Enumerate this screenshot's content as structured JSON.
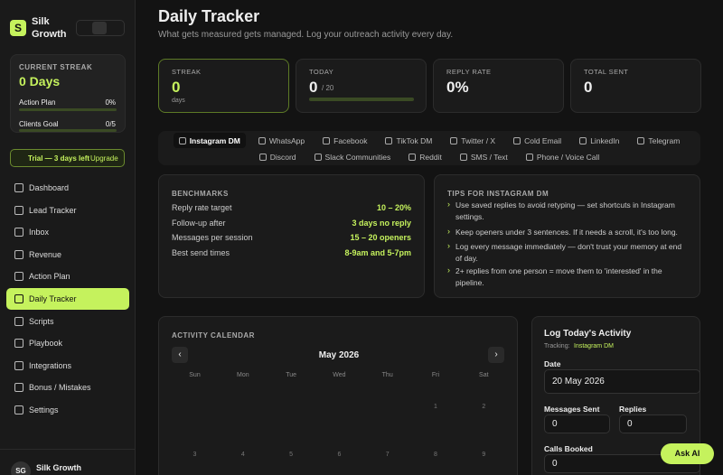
{
  "sidebar": {
    "logo": "S",
    "brand": "Silk Growth",
    "streak": {
      "label": "CURRENT STREAK",
      "value": "0 Days",
      "rows": [
        {
          "label": "Action Plan",
          "value": "0%"
        },
        {
          "label": "Clients Goal",
          "value": "0/5"
        }
      ]
    },
    "trial": {
      "text": "Trial — 3 days left",
      "action": "Upgrade"
    },
    "nav": [
      "Dashboard",
      "Lead Tracker",
      "Inbox",
      "Revenue",
      "Action Plan",
      "Daily Tracker",
      "Scripts",
      "Playbook",
      "Integrations",
      "Bonus / Mistakes",
      "Settings"
    ],
    "user": {
      "initials": "SG",
      "name": "Silk Growth"
    }
  },
  "header": {
    "title": "Daily Tracker",
    "subtitle": "What gets measured gets managed. Log your outreach activity every day."
  },
  "stats": [
    {
      "label": "STREAK",
      "value": "0",
      "unit": "days"
    },
    {
      "label": "TODAY",
      "value": "0",
      "unit": "/ 20"
    },
    {
      "label": "REPLY RATE",
      "value": "0%"
    },
    {
      "label": "TOTAL SENT",
      "value": "0"
    }
  ],
  "tabs": [
    "Instagram DM",
    "WhatsApp",
    "Facebook",
    "TikTok DM",
    "Twitter / X",
    "Cold Email",
    "LinkedIn",
    "Telegram",
    "Discord",
    "Slack Communities",
    "Reddit",
    "SMS / Text",
    "Phone / Voice Call"
  ],
  "benchmarks": {
    "title": "BENCHMARKS",
    "rows": [
      {
        "label": "Reply rate target",
        "value": "10 – 20%"
      },
      {
        "label": "Follow-up after",
        "value": "3 days no reply"
      },
      {
        "label": "Messages per session",
        "value": "15 – 20 openers"
      },
      {
        "label": "Best send times",
        "value": "8-9am and 5-7pm"
      }
    ]
  },
  "tips": {
    "title": "TIPS FOR INSTAGRAM DM",
    "items": [
      "Use saved replies to avoid retyping — set shortcuts in Instagram settings.",
      "Keep openers under 3 sentences. If it needs a scroll, it's too long.",
      "Log every message immediately — don't trust your memory at end of day.",
      "2+ replies from one person = move them to 'interested' in the pipeline."
    ]
  },
  "calendar": {
    "title": "ACTIVITY CALENDAR",
    "month": "May 2026",
    "weekdays": [
      "Sun",
      "Mon",
      "Tue",
      "Wed",
      "Thu",
      "Fri",
      "Sat"
    ],
    "days": [
      1,
      2,
      3,
      4,
      5,
      6,
      7,
      8,
      9
    ]
  },
  "log": {
    "title": "Log Today's Activity",
    "tracking_label": "Tracking:",
    "tracking_value": "Instagram DM",
    "fields": [
      {
        "label": "Date",
        "value": "20 May 2026"
      },
      {
        "label": "Messages Sent",
        "value": "0"
      },
      {
        "label": "Replies",
        "value": "0"
      },
      {
        "label": "Calls Booked",
        "value": "0"
      }
    ]
  },
  "ask_ai": "Ask AI"
}
